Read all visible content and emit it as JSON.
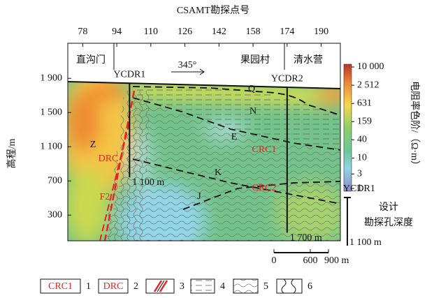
{
  "chart_data": {
    "type": "section",
    "title": "CSAMT勘探点号",
    "y_label": "高程/m",
    "xlim": [
      71,
      199
    ],
    "xticks": [
      78,
      94,
      110,
      126,
      142,
      158,
      174,
      190
    ],
    "ylim": [
      0,
      2310
    ],
    "yticks": [
      {
        "value": 1900,
        "label": "1 900"
      },
      {
        "value": 1500,
        "label": "1 500"
      },
      {
        "value": 1100,
        "label": "1 100"
      },
      700,
      300
    ],
    "places": [
      "直沟门",
      "果园村",
      "清水营"
    ],
    "orientation": "345°",
    "units": [
      "Q",
      "N",
      "E",
      "K",
      "J",
      "Z"
    ],
    "structures": [
      "CRC1",
      "CRC2",
      "DRC",
      "F2"
    ],
    "boreholes": [
      {
        "name": "YCDR1",
        "station": 100,
        "depth": {
          "value": 1100,
          "label": "1 100 m"
        }
      },
      {
        "name": "YCDR2",
        "station": 174,
        "depth": {
          "value": 1700,
          "label": "1 700 m"
        }
      }
    ],
    "colorbar": {
      "title": "电阻率色阶/（Ω·m）",
      "log": true,
      "lim": [
        1,
        10000
      ],
      "ticks": [
        {
          "value": 10000,
          "label": "10 000"
        },
        {
          "value": 2512,
          "label": "2 512"
        },
        631,
        159,
        40,
        10,
        3,
        1
      ]
    },
    "scale_bar": {
      "ticks": [
        0,
        600,
        {
          "value": 900,
          "label": "900 m"
        }
      ]
    },
    "borehole_legend": {
      "name": "YCDR1",
      "title": [
        "设计",
        "勘探孔深度"
      ],
      "depth": "1 100 m"
    },
    "legend": [
      {
        "symbol": "CRC1",
        "key": 1
      },
      {
        "symbol": "DRC",
        "key": 2
      },
      {
        "key": 3
      },
      {
        "key": 4
      },
      {
        "key": 5
      },
      {
        "key": 6
      }
    ]
  }
}
